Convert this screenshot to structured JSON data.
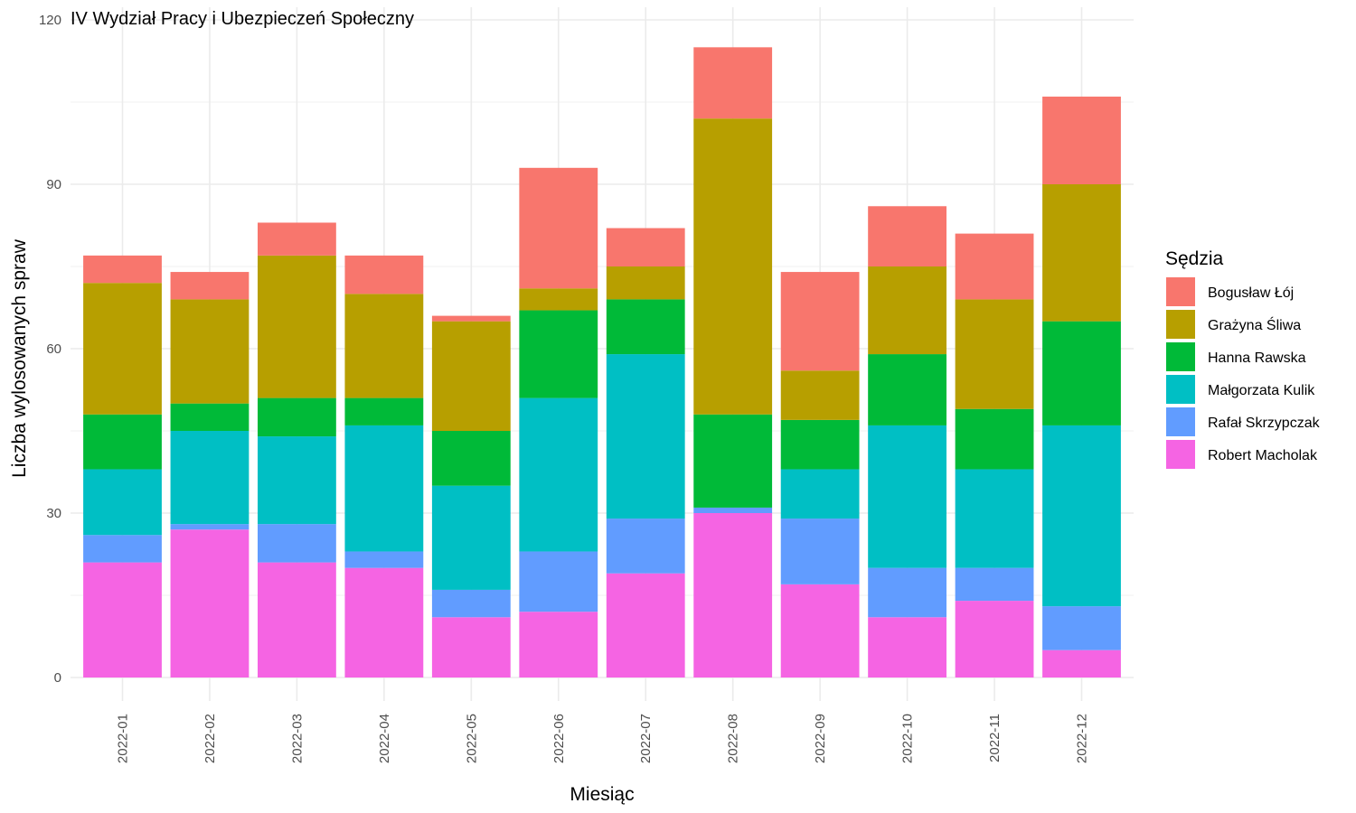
{
  "chart_data": {
    "type": "bar",
    "stacked": true,
    "title": "IV Wydział Pracy i Ubezpieczeń Społeczny",
    "xlabel": "Miesiąc",
    "ylabel": "Liczba wylosowanych spraw",
    "ylim": [
      0,
      120
    ],
    "yticks": [
      0,
      30,
      60,
      90,
      120
    ],
    "grid": true,
    "legend": {
      "title": "Sędzia",
      "position": "right"
    },
    "categories": [
      "2022-01",
      "2022-02",
      "2022-03",
      "2022-04",
      "2022-05",
      "2022-06",
      "2022-07",
      "2022-08",
      "2022-09",
      "2022-10",
      "2022-11",
      "2022-12"
    ],
    "series": [
      {
        "name": "Robert Macholak",
        "color": "#F564E3",
        "values": [
          21,
          27,
          21,
          20,
          11,
          12,
          19,
          30,
          17,
          11,
          14,
          5
        ]
      },
      {
        "name": "Rafał Skrzypczak",
        "color": "#619CFF",
        "values": [
          5,
          1,
          7,
          3,
          5,
          11,
          10,
          1,
          12,
          9,
          6,
          8
        ]
      },
      {
        "name": "Małgorzata Kulik",
        "color": "#00BFC4",
        "values": [
          12,
          17,
          16,
          23,
          19,
          28,
          30,
          0,
          9,
          26,
          18,
          33
        ]
      },
      {
        "name": "Hanna Rawska",
        "color": "#00BA38",
        "values": [
          10,
          5,
          7,
          5,
          10,
          16,
          10,
          17,
          9,
          13,
          11,
          19
        ]
      },
      {
        "name": "Grażyna Śliwa",
        "color": "#B79F00",
        "values": [
          24,
          19,
          26,
          19,
          20,
          4,
          6,
          54,
          9,
          16,
          20,
          25
        ]
      },
      {
        "name": "Bogusław Łój",
        "color": "#F8766D",
        "values": [
          5,
          5,
          6,
          7,
          1,
          22,
          7,
          13,
          18,
          11,
          12,
          16
        ]
      }
    ],
    "legend_order": [
      "Bogusław Łój",
      "Grażyna Śliwa",
      "Hanna Rawska",
      "Małgorzata Kulik",
      "Rafał Skrzypczak",
      "Robert Macholak"
    ]
  }
}
